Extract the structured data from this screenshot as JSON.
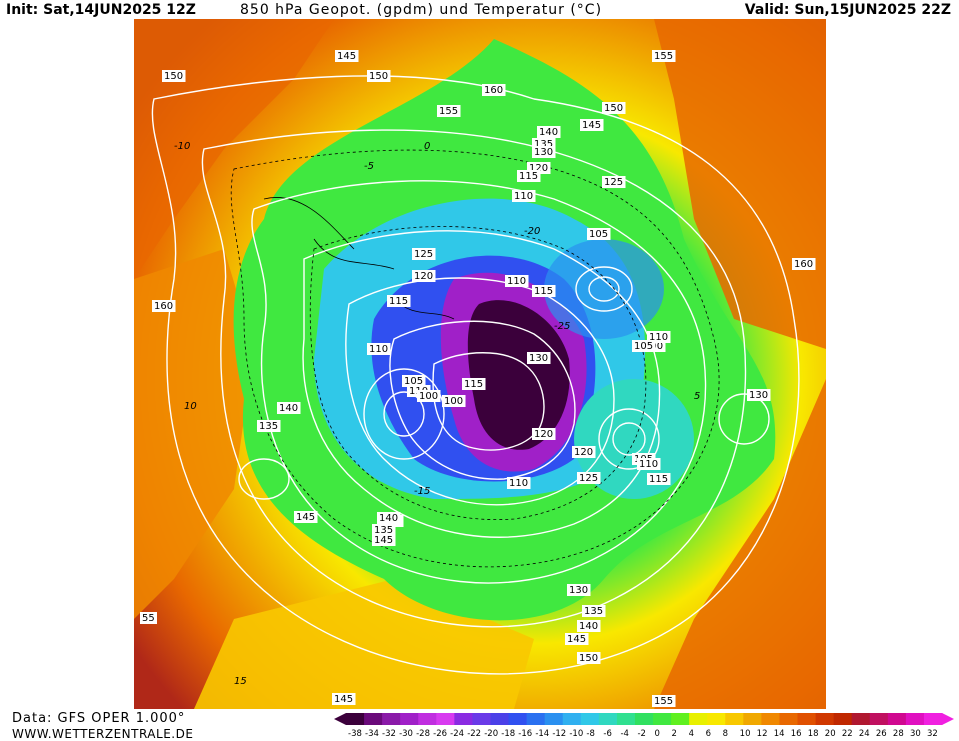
{
  "header": {
    "init": "Init: Sat,14JUN2025 12Z",
    "title": "850 hPa Geopot. (gpdm) und Temperatur (°C)",
    "valid": "Valid: Sun,15JUN2025 22Z"
  },
  "footer": {
    "source": "Data: GFS OPER 1.000°",
    "site": "WWW.WETTERZENTRALE.DE"
  },
  "colorbar": {
    "ticks": [
      "-38",
      "-34",
      "-32",
      "-30",
      "-28",
      "-26",
      "-24",
      "-22",
      "-20",
      "-18",
      "-16",
      "-14",
      "-12",
      "-10",
      "-8",
      "-6",
      "-4",
      "-2",
      "0",
      "2",
      "4",
      "6",
      "8",
      "10",
      "12",
      "14",
      "16",
      "18",
      "20",
      "22",
      "24",
      "26",
      "28",
      "30",
      "32"
    ],
    "colors": [
      "#3b003b",
      "#6a0a7a",
      "#8a1aa8",
      "#a020c8",
      "#c02ee0",
      "#d83af0",
      "#8a2be2",
      "#6a3ae8",
      "#4b40e8",
      "#3050f0",
      "#2a70f0",
      "#2a90f0",
      "#30b0f0",
      "#30c8e8",
      "#30d8c0",
      "#30e090",
      "#30e060",
      "#40e840",
      "#60f020",
      "#e8f000",
      "#f8e800",
      "#f8c800",
      "#f0a800",
      "#f08800",
      "#e86800",
      "#e05000",
      "#d03800",
      "#c02800",
      "#b01830",
      "#c01060",
      "#d00890",
      "#e010c0",
      "#f020e0"
    ]
  },
  "geopotential_labels": [
    "150",
    "145",
    "150",
    "155",
    "160",
    "155",
    "150",
    "145",
    "140",
    "135",
    "130",
    "120",
    "115",
    "110",
    "125",
    "105",
    "125",
    "120",
    "115",
    "110",
    "105",
    "115",
    "110",
    "100",
    "110",
    "115",
    "130",
    "120",
    "110",
    "105",
    "110",
    "115",
    "100",
    "110",
    "105",
    "100",
    "130",
    "120",
    "125",
    "130",
    "135",
    "140",
    "145",
    "130",
    "135",
    "140",
    "145",
    "150",
    "155",
    "160",
    "160",
    "140",
    "135",
    "145",
    "55",
    "145",
    "155"
  ],
  "temperature_labels": [
    "-10",
    "-5",
    "0",
    "5",
    "10",
    "15",
    "-15",
    "-20",
    "-25"
  ]
}
